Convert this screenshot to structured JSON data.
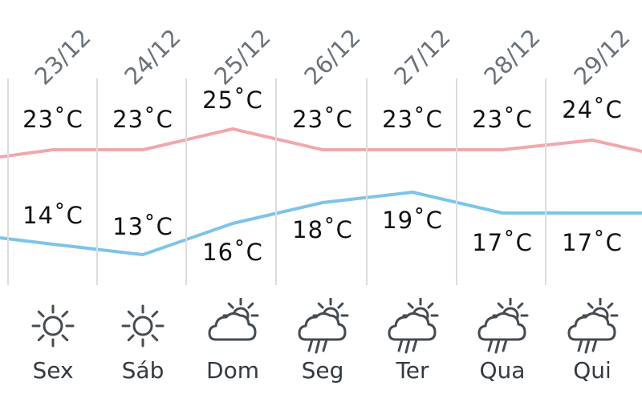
{
  "colors": {
    "max_line": "#f0a8ac",
    "min_line": "#7cc4ea",
    "icon_stroke": "#444b52",
    "divider": "#dcdcdc"
  },
  "days": [
    {
      "date": "23/12",
      "max": "23˚C",
      "min": "14˚C",
      "weekday": "Sex",
      "icon": "sun-icon"
    },
    {
      "date": "24/12",
      "max": "23˚C",
      "min": "13˚C",
      "weekday": "Sáb",
      "icon": "sun-icon"
    },
    {
      "date": "25/12",
      "max": "25˚C",
      "min": "16˚C",
      "weekday": "Dom",
      "icon": "partly-cloudy-icon"
    },
    {
      "date": "26/12",
      "max": "23˚C",
      "min": "18˚C",
      "weekday": "Seg",
      "icon": "rain-sun-icon"
    },
    {
      "date": "27/12",
      "max": "23˚C",
      "min": "19˚C",
      "weekday": "Ter",
      "icon": "rain-sun-icon"
    },
    {
      "date": "28/12",
      "max": "23˚C",
      "min": "17˚C",
      "weekday": "Qua",
      "icon": "rain-sun-icon"
    },
    {
      "date": "29/12",
      "max": "24˚C",
      "min": "17˚C",
      "weekday": "Qui",
      "icon": "rain-sun-icon"
    }
  ],
  "chart_data": {
    "type": "line",
    "x": [
      "23/12",
      "24/12",
      "25/12",
      "26/12",
      "27/12",
      "28/12",
      "29/12"
    ],
    "series": [
      {
        "values": [
          23,
          23,
          25,
          23,
          23,
          23,
          24
        ]
      },
      {
        "values": [
          14,
          13,
          16,
          18,
          19,
          17,
          17
        ]
      }
    ]
  }
}
